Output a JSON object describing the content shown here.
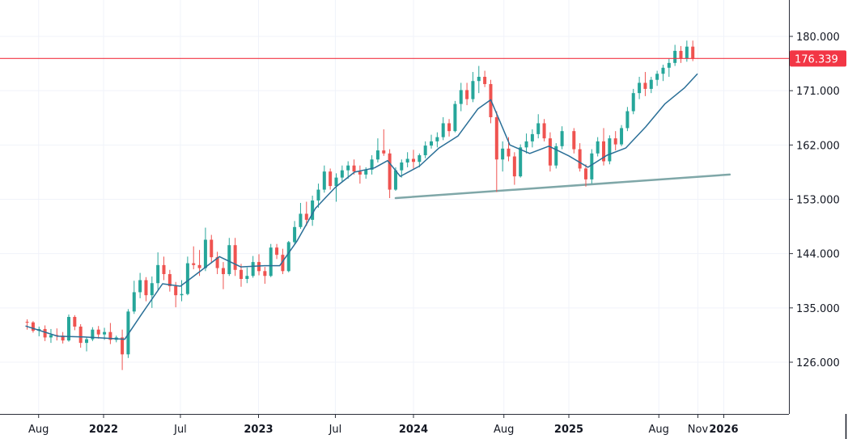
{
  "chart_data": {
    "type": "candlestick",
    "title": "",
    "xlabel": "",
    "ylabel": "",
    "ylim": [
      117,
      183
    ],
    "y_ticks": [
      "180.000",
      "171.000",
      "162.000",
      "153.000",
      "144.000",
      "135.000",
      "126.000"
    ],
    "y_tick_values": [
      180,
      171,
      162,
      153,
      144,
      135,
      126
    ],
    "x_ticks": [
      {
        "label": "Aug",
        "bold": false
      },
      {
        "label": "2022",
        "bold": true
      },
      {
        "label": "Jul",
        "bold": false
      },
      {
        "label": "2023",
        "bold": true
      },
      {
        "label": "Jul",
        "bold": false
      },
      {
        "label": "2024",
        "bold": true
      },
      {
        "label": "Aug",
        "bold": false
      },
      {
        "label": "2025",
        "bold": true
      },
      {
        "label": "Aug",
        "bold": false
      },
      {
        "label": "Nov",
        "bold": false
      },
      {
        "label": "2026",
        "bold": true
      }
    ],
    "x_tick_dates": [
      "2021-08-01",
      "2022-01-01",
      "2022-07-01",
      "2023-01-01",
      "2023-07-01",
      "2024-01-01",
      "2024-08-01",
      "2025-01-01",
      "2025-08-01",
      "2025-11-01",
      "2026-01-01"
    ],
    "grid": true,
    "current_price": {
      "value": 176.339,
      "label": "176.339",
      "color": "#f23645"
    },
    "colors": {
      "up": "#26a69a",
      "down": "#ef5350",
      "ma": "#2a6f97",
      "trendline": "#7fa7a8",
      "price_line": "#f23645",
      "grid": "#f0f3fa",
      "axis": "#131722"
    },
    "trendline": {
      "points": [
        [
          "2023-11-20",
          153.2
        ],
        [
          "2026-01-15",
          157.1
        ]
      ]
    },
    "ma_points": [
      [
        "2021-07-01",
        132.0
      ],
      [
        "2021-09-15",
        130.3
      ],
      [
        "2021-11-15",
        130.2
      ],
      [
        "2022-01-01",
        130.0
      ],
      [
        "2022-02-20",
        129.8
      ],
      [
        "2022-04-01",
        134.0
      ],
      [
        "2022-05-20",
        139.0
      ],
      [
        "2022-07-01",
        138.6
      ],
      [
        "2022-08-15",
        141.0
      ],
      [
        "2022-10-01",
        143.5
      ],
      [
        "2022-11-20",
        141.8
      ],
      [
        "2023-01-15",
        142.0
      ],
      [
        "2023-02-20",
        142.0
      ],
      [
        "2023-04-01",
        146.0
      ],
      [
        "2023-05-15",
        151.5
      ],
      [
        "2023-07-01",
        155.0
      ],
      [
        "2023-08-15",
        157.5
      ],
      [
        "2023-10-01",
        158.2
      ],
      [
        "2023-11-01",
        159.4
      ],
      [
        "2023-12-01",
        156.8
      ],
      [
        "2024-01-15",
        158.5
      ],
      [
        "2024-03-01",
        161.5
      ],
      [
        "2024-04-15",
        163.5
      ],
      [
        "2024-06-01",
        168.0
      ],
      [
        "2024-07-01",
        169.5
      ],
      [
        "2024-08-15",
        162.0
      ],
      [
        "2024-10-01",
        160.6
      ],
      [
        "2024-11-15",
        161.8
      ],
      [
        "2025-01-01",
        160.2
      ],
      [
        "2025-02-15",
        158.3
      ],
      [
        "2025-04-01",
        160.3
      ],
      [
        "2025-05-15",
        161.5
      ],
      [
        "2025-07-01",
        165.0
      ],
      [
        "2025-08-15",
        168.8
      ],
      [
        "2025-10-01",
        171.5
      ],
      [
        "2025-10-31",
        173.8
      ]
    ],
    "candles": [
      [
        "2021-07-05",
        132.7,
        133.1,
        131.4,
        132.6
      ],
      [
        "2021-07-19",
        132.6,
        132.8,
        130.9,
        131.2
      ],
      [
        "2021-08-02",
        131.2,
        131.9,
        130.3,
        131.5
      ],
      [
        "2021-08-16",
        131.5,
        132.1,
        129.5,
        130.1
      ],
      [
        "2021-08-30",
        130.1,
        131.5,
        129.2,
        130.5
      ],
      [
        "2021-09-13",
        130.5,
        131.6,
        129.6,
        130.4
      ],
      [
        "2021-09-27",
        130.4,
        131.0,
        129.1,
        129.6
      ],
      [
        "2021-10-11",
        129.6,
        133.9,
        129.4,
        133.5
      ],
      [
        "2021-10-25",
        133.5,
        133.8,
        131.3,
        131.9
      ],
      [
        "2021-11-08",
        131.9,
        132.3,
        128.4,
        129.2
      ],
      [
        "2021-11-22",
        129.2,
        130.1,
        127.8,
        129.8
      ],
      [
        "2021-12-06",
        129.8,
        131.8,
        129.5,
        131.4
      ],
      [
        "2021-12-20",
        131.4,
        132.0,
        129.9,
        130.6
      ],
      [
        "2022-01-03",
        130.6,
        131.7,
        129.7,
        131.0
      ],
      [
        "2022-01-17",
        131.0,
        132.5,
        129.0,
        129.7
      ],
      [
        "2022-01-31",
        129.7,
        130.4,
        129.3,
        130.1
      ],
      [
        "2022-02-14",
        130.1,
        131.4,
        124.7,
        127.3
      ],
      [
        "2022-02-28",
        127.3,
        134.8,
        126.7,
        134.4
      ],
      [
        "2022-03-14",
        134.4,
        139.5,
        134.0,
        137.6
      ],
      [
        "2022-03-28",
        137.6,
        140.8,
        136.6,
        139.6
      ],
      [
        "2022-04-11",
        139.6,
        140.1,
        136.1,
        137.1
      ],
      [
        "2022-04-25",
        137.1,
        140.2,
        135.0,
        139.1
      ],
      [
        "2022-05-09",
        139.1,
        144.2,
        138.0,
        142.1
      ],
      [
        "2022-05-23",
        142.1,
        143.5,
        139.6,
        140.6
      ],
      [
        "2022-06-06",
        140.6,
        141.3,
        137.7,
        138.6
      ],
      [
        "2022-06-20",
        138.6,
        139.3,
        135.1,
        137.1
      ],
      [
        "2022-07-04",
        137.1,
        139.6,
        136.1,
        137.3
      ],
      [
        "2022-07-18",
        137.3,
        143.5,
        137.1,
        142.4
      ],
      [
        "2022-08-01",
        142.4,
        145.2,
        141.4,
        142.1
      ],
      [
        "2022-08-15",
        142.1,
        144.6,
        140.3,
        141.6
      ],
      [
        "2022-08-29",
        141.6,
        148.3,
        141.1,
        146.3
      ],
      [
        "2022-09-12",
        146.3,
        147.1,
        142.4,
        143.4
      ],
      [
        "2022-09-26",
        143.4,
        144.3,
        140.6,
        141.6
      ],
      [
        "2022-10-10",
        141.6,
        142.6,
        138.1,
        140.6
      ],
      [
        "2022-10-24",
        140.6,
        146.6,
        140.3,
        145.4
      ],
      [
        "2022-11-07",
        145.4,
        146.6,
        140.3,
        141.3
      ],
      [
        "2022-11-21",
        141.3,
        142.3,
        138.5,
        139.8
      ],
      [
        "2022-12-05",
        139.8,
        141.7,
        139.1,
        140.3
      ],
      [
        "2022-12-19",
        140.3,
        143.6,
        140.0,
        142.6
      ],
      [
        "2023-01-02",
        142.6,
        143.9,
        140.4,
        141.1
      ],
      [
        "2023-01-16",
        141.1,
        141.8,
        139.0,
        140.3
      ],
      [
        "2023-01-30",
        140.3,
        145.6,
        140.1,
        145.0
      ],
      [
        "2023-02-13",
        145.0,
        145.6,
        143.1,
        143.8
      ],
      [
        "2023-02-27",
        143.8,
        144.8,
        140.6,
        141.1
      ],
      [
        "2023-03-13",
        141.1,
        146.1,
        140.9,
        145.9
      ],
      [
        "2023-03-27",
        145.9,
        149.4,
        145.6,
        148.4
      ],
      [
        "2023-04-10",
        148.4,
        152.4,
        148.1,
        150.6
      ],
      [
        "2023-04-24",
        150.6,
        152.6,
        148.6,
        149.6
      ],
      [
        "2023-05-08",
        149.6,
        153.6,
        148.6,
        152.8
      ],
      [
        "2023-05-22",
        152.8,
        155.6,
        151.6,
        154.6
      ],
      [
        "2023-06-05",
        154.6,
        158.6,
        154.1,
        157.6
      ],
      [
        "2023-06-19",
        157.6,
        158.1,
        154.6,
        155.2
      ],
      [
        "2023-07-03",
        155.2,
        157.3,
        152.6,
        156.6
      ],
      [
        "2023-07-17",
        156.6,
        158.6,
        155.8,
        157.8
      ],
      [
        "2023-07-31",
        157.8,
        159.3,
        156.4,
        158.6
      ],
      [
        "2023-08-14",
        158.6,
        159.6,
        157.1,
        157.6
      ],
      [
        "2023-08-28",
        157.6,
        158.6,
        155.6,
        157.1
      ],
      [
        "2023-09-11",
        157.1,
        158.3,
        156.4,
        157.9
      ],
      [
        "2023-09-25",
        157.9,
        160.3,
        157.1,
        159.6
      ],
      [
        "2023-10-09",
        159.6,
        163.1,
        159.1,
        161.1
      ],
      [
        "2023-10-23",
        161.1,
        164.6,
        160.2,
        160.6
      ],
      [
        "2023-11-06",
        160.6,
        161.3,
        153.2,
        154.6
      ],
      [
        "2023-11-20",
        154.6,
        158.3,
        154.4,
        157.8
      ],
      [
        "2023-12-04",
        157.8,
        159.6,
        156.6,
        159.1
      ],
      [
        "2023-12-18",
        159.1,
        160.8,
        158.3,
        159.7
      ],
      [
        "2024-01-01",
        159.7,
        161.2,
        158.1,
        159.2
      ],
      [
        "2024-01-15",
        159.2,
        160.6,
        158.3,
        160.3
      ],
      [
        "2024-01-29",
        160.3,
        162.6,
        159.8,
        161.9
      ],
      [
        "2024-02-12",
        161.9,
        163.7,
        161.4,
        162.6
      ],
      [
        "2024-02-26",
        162.6,
        164.1,
        161.6,
        163.3
      ],
      [
        "2024-03-11",
        163.3,
        166.6,
        162.8,
        165.6
      ],
      [
        "2024-03-25",
        165.6,
        166.3,
        163.4,
        164.3
      ],
      [
        "2024-04-08",
        164.3,
        169.3,
        164.1,
        168.8
      ],
      [
        "2024-04-22",
        168.8,
        172.3,
        167.6,
        171.1
      ],
      [
        "2024-05-06",
        171.1,
        172.3,
        168.6,
        169.6
      ],
      [
        "2024-05-20",
        169.6,
        174.1,
        169.1,
        172.6
      ],
      [
        "2024-06-03",
        172.6,
        175.1,
        170.6,
        173.3
      ],
      [
        "2024-06-17",
        173.3,
        174.3,
        171.6,
        172.1
      ],
      [
        "2024-07-01",
        172.1,
        172.8,
        165.6,
        166.6
      ],
      [
        "2024-07-15",
        166.6,
        167.6,
        154.2,
        159.6
      ],
      [
        "2024-07-29",
        159.6,
        162.6,
        157.6,
        161.4
      ],
      [
        "2024-08-12",
        161.4,
        163.3,
        159.3,
        160.1
      ],
      [
        "2024-08-26",
        160.1,
        160.8,
        155.4,
        156.8
      ],
      [
        "2024-09-09",
        156.8,
        162.1,
        156.6,
        161.6
      ],
      [
        "2024-09-23",
        161.6,
        163.9,
        160.6,
        162.6
      ],
      [
        "2024-10-07",
        162.6,
        164.6,
        161.6,
        163.8
      ],
      [
        "2024-10-21",
        163.8,
        167.1,
        163.1,
        165.6
      ],
      [
        "2024-11-04",
        165.6,
        166.3,
        162.6,
        163.1
      ],
      [
        "2024-11-18",
        163.1,
        164.1,
        157.6,
        158.6
      ],
      [
        "2024-12-02",
        158.6,
        162.3,
        158.1,
        161.8
      ],
      [
        "2024-12-16",
        161.8,
        165.1,
        161.3,
        164.3
      ],
      [
        "2025-01-13",
        164.3,
        164.8,
        160.6,
        161.3
      ],
      [
        "2025-01-27",
        161.3,
        162.3,
        157.6,
        158.1
      ],
      [
        "2025-02-10",
        158.1,
        158.8,
        155.1,
        156.3
      ],
      [
        "2025-02-24",
        156.3,
        161.3,
        155.6,
        160.6
      ],
      [
        "2025-03-10",
        160.6,
        163.3,
        160.1,
        162.6
      ],
      [
        "2025-03-24",
        162.6,
        164.8,
        158.6,
        159.3
      ],
      [
        "2025-04-07",
        159.3,
        163.6,
        158.8,
        163.1
      ],
      [
        "2025-04-21",
        163.1,
        164.3,
        161.1,
        162.1
      ],
      [
        "2025-05-05",
        162.1,
        165.3,
        161.8,
        164.8
      ],
      [
        "2025-05-19",
        164.8,
        168.3,
        164.3,
        167.6
      ],
      [
        "2025-06-02",
        167.6,
        171.3,
        167.1,
        170.6
      ],
      [
        "2025-06-16",
        170.6,
        173.3,
        169.6,
        172.3
      ],
      [
        "2025-06-30",
        172.3,
        174.1,
        170.1,
        171.3
      ],
      [
        "2025-07-14",
        171.3,
        173.3,
        170.6,
        172.8
      ],
      [
        "2025-07-28",
        172.8,
        174.3,
        171.8,
        173.8
      ],
      [
        "2025-08-11",
        173.8,
        175.3,
        172.6,
        174.8
      ],
      [
        "2025-08-25",
        174.8,
        176.3,
        173.3,
        175.6
      ],
      [
        "2025-09-08",
        175.6,
        178.6,
        175.1,
        177.6
      ],
      [
        "2025-09-22",
        177.6,
        178.4,
        175.6,
        176.3
      ],
      [
        "2025-10-06",
        176.3,
        179.3,
        175.8,
        178.3
      ],
      [
        "2025-10-20",
        178.3,
        179.3,
        175.9,
        176.3
      ]
    ]
  }
}
